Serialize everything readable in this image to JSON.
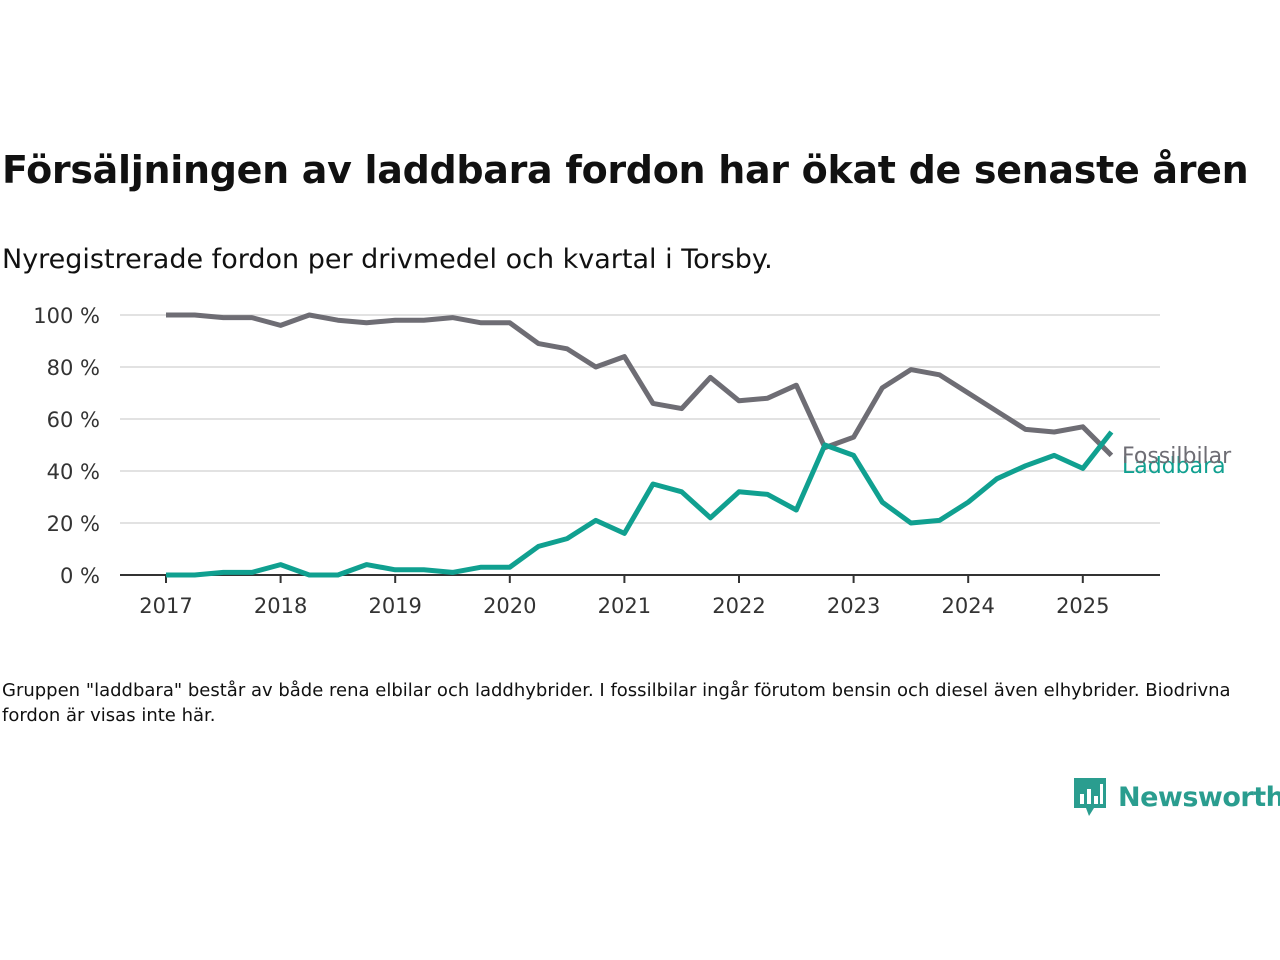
{
  "title": "Försäljningen av laddbara fordon har ökat de senaste åren",
  "subtitle": "Nyregistrerade fordon per drivmedel och kvartal i Torsby.",
  "note": "Gruppen \"laddbara\" består av både rena elbilar och laddhybrider. I fossilbilar ingår förutom bensin och diesel även elhybrider. Biodrivna fordon är visas inte här.",
  "brand": {
    "name": "Newsworthy",
    "color": "#2a9d8f"
  },
  "chart_data": {
    "type": "line",
    "title": "Försäljningen av laddbara fordon har ökat de senaste åren",
    "subtitle": "Nyregistrerade fordon per drivmedel och kvartal i Torsby.",
    "xlabel": "",
    "ylabel": "",
    "ylim": [
      0,
      100
    ],
    "yticks": [
      0,
      20,
      40,
      60,
      80,
      100
    ],
    "ytick_labels": [
      "0 %",
      "20 %",
      "40 %",
      "60 %",
      "80 %",
      "100 %"
    ],
    "xlim": [
      2017.0,
      2025.25
    ],
    "xtick_labels": [
      "2017",
      "2018",
      "2019",
      "2020",
      "2021",
      "2022",
      "2023",
      "2024",
      "2025"
    ],
    "grid": "horizontal",
    "legend": "direct labels at line ends",
    "x": [
      "2017 Q1",
      "2017 Q2",
      "2017 Q3",
      "2017 Q4",
      "2018 Q1",
      "2018 Q2",
      "2018 Q3",
      "2018 Q4",
      "2019 Q1",
      "2019 Q2",
      "2019 Q3",
      "2019 Q4",
      "2020 Q1",
      "2020 Q2",
      "2020 Q3",
      "2020 Q4",
      "2021 Q1",
      "2021 Q2",
      "2021 Q3",
      "2021 Q4",
      "2022 Q1",
      "2022 Q2",
      "2022 Q3",
      "2022 Q4",
      "2023 Q1",
      "2023 Q2",
      "2023 Q3",
      "2023 Q4",
      "2024 Q1",
      "2024 Q2",
      "2024 Q3",
      "2024 Q4",
      "2025 Q1",
      "2025 Q2"
    ],
    "series": [
      {
        "name": "Fossilbilar",
        "color": "#6e6d74",
        "values": [
          100,
          100,
          99,
          99,
          96,
          100,
          98,
          97,
          98,
          98,
          99,
          97,
          97,
          89,
          87,
          80,
          84,
          66,
          64,
          76,
          67,
          68,
          73,
          49,
          53,
          72,
          79,
          77,
          70,
          63,
          56,
          55,
          57,
          46
        ]
      },
      {
        "name": "Laddbara",
        "color": "#10a090",
        "values": [
          0,
          0,
          1,
          1,
          4,
          0,
          0,
          4,
          2,
          2,
          1,
          3,
          3,
          11,
          14,
          21,
          16,
          35,
          32,
          22,
          32,
          31,
          25,
          50,
          46,
          28,
          20,
          21,
          28,
          37,
          42,
          46,
          41,
          55
        ]
      }
    ]
  }
}
